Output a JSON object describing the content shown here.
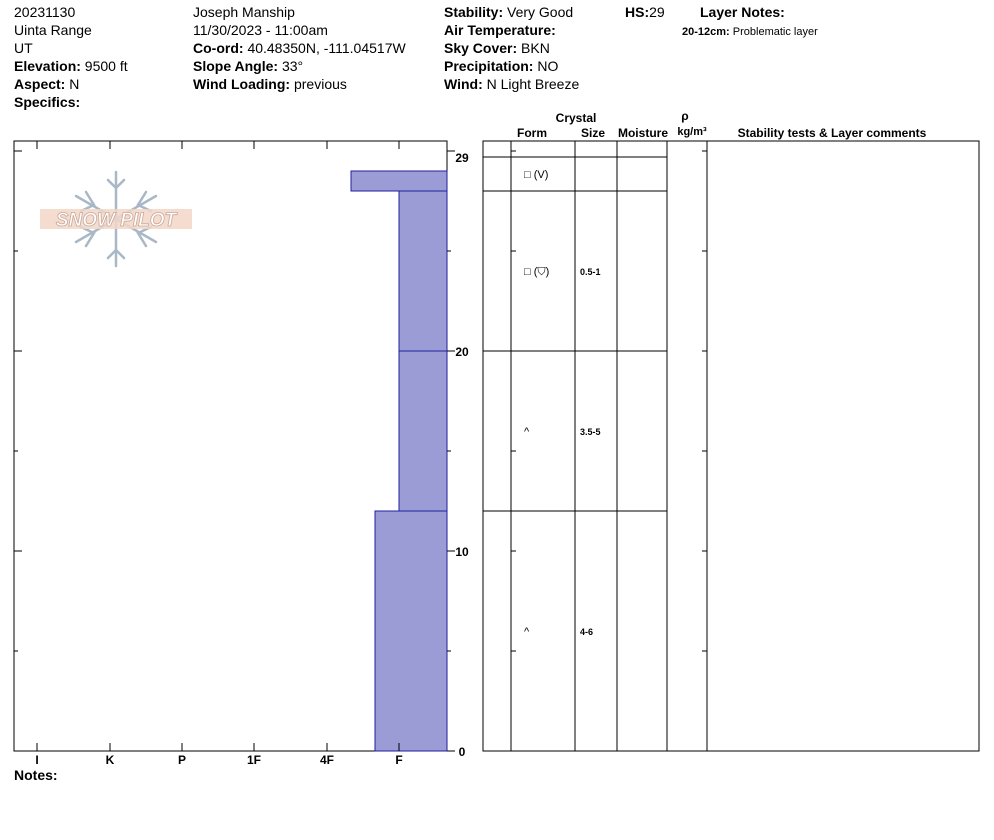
{
  "header": {
    "date": "20231130",
    "range": "Uinta Range",
    "state": "UT",
    "elevation_label": "Elevation:",
    "elevation": "9500 ft",
    "aspect_label": "Aspect:",
    "aspect": "N",
    "specifics_label": "Specifics:",
    "observer": "Joseph Manship",
    "datetime": "11/30/2023 - 11:00am",
    "coord_label": "Co-ord:",
    "coord": "40.48350N, -111.04517W",
    "slope_label": "Slope Angle:",
    "slope": "33°",
    "wind_loading_label": "Wind Loading:",
    "wind_loading": "previous",
    "stability_label": "Stability:",
    "stability": "Very Good",
    "air_temp_label": "Air Temperature:",
    "sky_label": "Sky Cover:",
    "sky": "BKN",
    "precip_label": "Precipitation:",
    "precip": "NO",
    "wind_label": "Wind:",
    "wind": "N Light Breeze",
    "hs_label": "HS:",
    "hs": "29",
    "layer_notes_label": "Layer Notes:",
    "layer_note_range": "20-12cm:",
    "layer_note_text": "Problematic layer"
  },
  "logo_text": "SNOW PILOT",
  "notes_label": "Notes:",
  "columns": {
    "crystal": "Crystal",
    "form": "Form",
    "size": "Size",
    "moisture": "Moisture",
    "rho": "ρ",
    "density_unit": "kg/m³",
    "stability_comments": "Stability tests & Layer comments"
  },
  "colors": {
    "hardness_fill": "#9b9bd6",
    "hardness_stroke": "#1f1f9f"
  },
  "chart_data": {
    "type": "bar",
    "description_axis_x": [
      "I",
      "K",
      "P",
      "1F",
      "4F",
      "F"
    ],
    "y_ticks": [
      0,
      10,
      20,
      29
    ],
    "ylim": [
      0,
      29
    ],
    "hardness_layers": [
      {
        "top": 29,
        "bottom": 28,
        "hardness": "4F-"
      },
      {
        "top": 28,
        "bottom": 20,
        "hardness": "F"
      },
      {
        "top": 20,
        "bottom": 12,
        "hardness": "F"
      },
      {
        "top": 12,
        "bottom": 0,
        "hardness": "F+"
      }
    ],
    "crystal_layers": [
      {
        "top": 29,
        "bottom": 28,
        "form": "□ (V)",
        "size": ""
      },
      {
        "top": 28,
        "bottom": 20,
        "form": "□ (⛉)",
        "size": "0.5-1"
      },
      {
        "top": 20,
        "bottom": 12,
        "form": "^",
        "size": "3.5-5"
      },
      {
        "top": 12,
        "bottom": 0,
        "form": "^",
        "size": "4-6"
      }
    ]
  }
}
